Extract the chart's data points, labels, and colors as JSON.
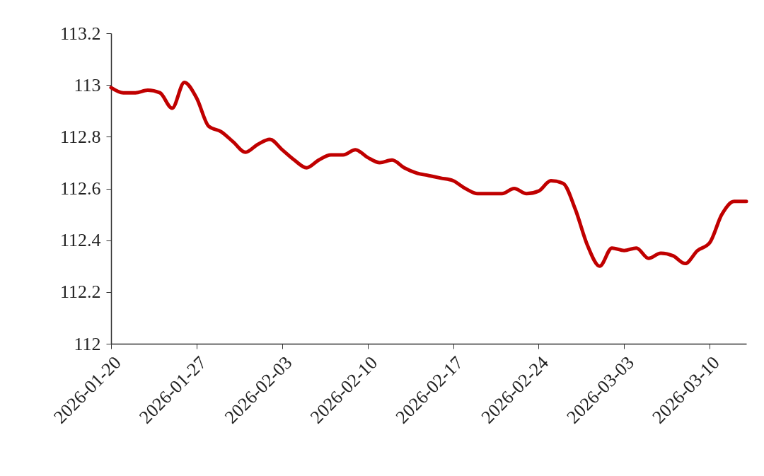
{
  "chart_data": {
    "type": "line",
    "x": [
      "2026-01-20",
      "2026-01-21",
      "2026-01-22",
      "2026-01-23",
      "2026-01-24",
      "2026-01-25",
      "2026-01-26",
      "2026-01-27",
      "2026-01-28",
      "2026-01-29",
      "2026-01-30",
      "2026-01-31",
      "2026-02-01",
      "2026-02-02",
      "2026-02-03",
      "2026-02-04",
      "2026-02-05",
      "2026-02-06",
      "2026-02-07",
      "2026-02-08",
      "2026-02-09",
      "2026-02-10",
      "2026-02-11",
      "2026-02-12",
      "2026-02-13",
      "2026-02-14",
      "2026-02-15",
      "2026-02-16",
      "2026-02-17",
      "2026-02-18",
      "2026-02-19",
      "2026-02-20",
      "2026-02-21",
      "2026-02-22",
      "2026-02-23",
      "2026-02-24",
      "2026-02-25",
      "2026-02-26",
      "2026-02-27",
      "2026-02-28",
      "2026-03-01",
      "2026-03-02",
      "2026-03-03",
      "2026-03-04",
      "2026-03-05",
      "2026-03-06",
      "2026-03-07",
      "2026-03-08",
      "2026-03-09",
      "2026-03-10",
      "2026-03-11",
      "2026-03-12",
      "2026-03-13"
    ],
    "series": [
      {
        "color": "#c00000",
        "values": [
          112.99,
          112.97,
          112.97,
          112.98,
          112.97,
          112.91,
          113.01,
          112.95,
          112.84,
          112.82,
          112.78,
          112.74,
          112.77,
          112.79,
          112.75,
          112.71,
          112.68,
          112.71,
          112.73,
          112.73,
          112.75,
          112.72,
          112.7,
          112.71,
          112.68,
          112.66,
          112.65,
          112.64,
          112.63,
          112.6,
          112.58,
          112.58,
          112.58,
          112.6,
          112.58,
          112.59,
          112.63,
          112.62,
          112.52,
          112.38,
          112.3,
          112.37,
          112.36,
          112.37,
          112.33,
          112.35,
          112.34,
          112.31,
          112.36,
          112.39,
          112.5,
          112.55,
          112.55
        ]
      }
    ],
    "xlim": [
      "2026-01-20",
      "2026-03-13"
    ],
    "xticks": [
      "2026-01-20",
      "2026-01-27",
      "2026-02-03",
      "2026-02-10",
      "2026-02-17",
      "2026-02-24",
      "2026-03-03",
      "2026-03-10"
    ],
    "ylim": [
      112,
      113.2
    ],
    "yticks": [
      112,
      112.2,
      112.4,
      112.6,
      112.8,
      113,
      113.2
    ],
    "grid": false,
    "marker": "none",
    "line_style": "solid"
  }
}
